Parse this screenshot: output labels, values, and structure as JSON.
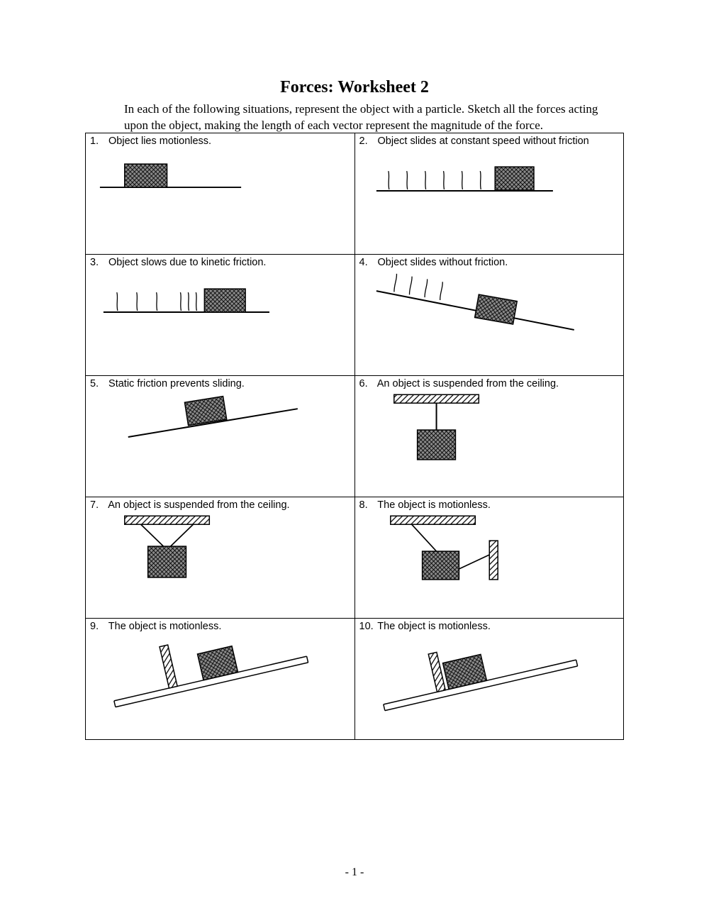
{
  "title": "Forces: Worksheet 2",
  "instructions": "In each of the following situations, represent the object with a particle.  Sketch all the forces acting upon the object, making the length of each vector represent the magnitude of the force.",
  "page_number": "- 1 -",
  "colors": {
    "stroke": "#000000",
    "block_fill": "#808080",
    "block_fill_light": "#a0a0a0",
    "background": "#ffffff"
  },
  "questions": [
    {
      "n": "1.",
      "text": "Object lies motionless.",
      "diagram": "d1"
    },
    {
      "n": "2.",
      "text": "Object slides at constant speed without friction",
      "diagram": "d2"
    },
    {
      "n": "3.",
      "text": "Object slows due to kinetic friction.",
      "diagram": "d3"
    },
    {
      "n": "4.",
      "text": "Object slides without friction.",
      "diagram": "d4"
    },
    {
      "n": "5.",
      "text": "Static friction prevents sliding.",
      "diagram": "d5"
    },
    {
      "n": "6.",
      "text": "An object is suspended from the ceiling.",
      "diagram": "d6"
    },
    {
      "n": "7.",
      "text": "An object is suspended from the ceiling.",
      "diagram": "d7"
    },
    {
      "n": "8.",
      "text": "The object is motionless.",
      "diagram": "d8"
    },
    {
      "n": "9.",
      "text": "The object is motionless.",
      "diagram": "d9"
    },
    {
      "n": "10.",
      "text": "The object is motionless.",
      "diagram": "d10"
    }
  ]
}
